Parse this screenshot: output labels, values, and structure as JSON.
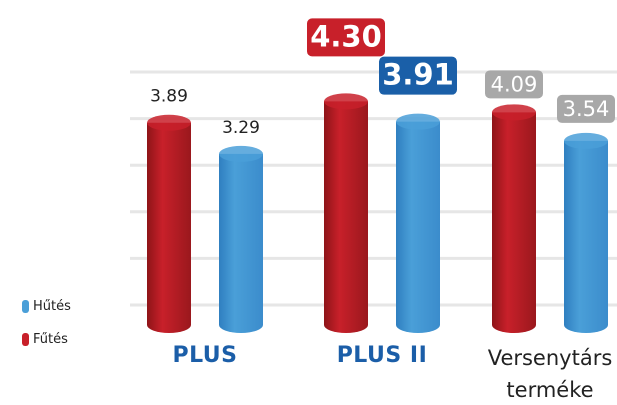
{
  "chart_data": {
    "type": "bar",
    "categories": [
      "PLUS",
      "PLUS II",
      "Versenytárs terméke"
    ],
    "series": [
      {
        "name": "Fűtés",
        "color": "#c8202a",
        "values": [
          3.89,
          4.3,
          4.09
        ],
        "value_labels": [
          "3.89",
          "4.30",
          "4.09"
        ]
      },
      {
        "name": "Hűtés",
        "color": "#4a9fd8",
        "values": [
          3.29,
          3.91,
          3.54
        ],
        "value_labels": [
          "3.29",
          "3.91",
          "3.54"
        ]
      }
    ],
    "ylim": [
      0,
      5
    ],
    "grid": true
  }
}
